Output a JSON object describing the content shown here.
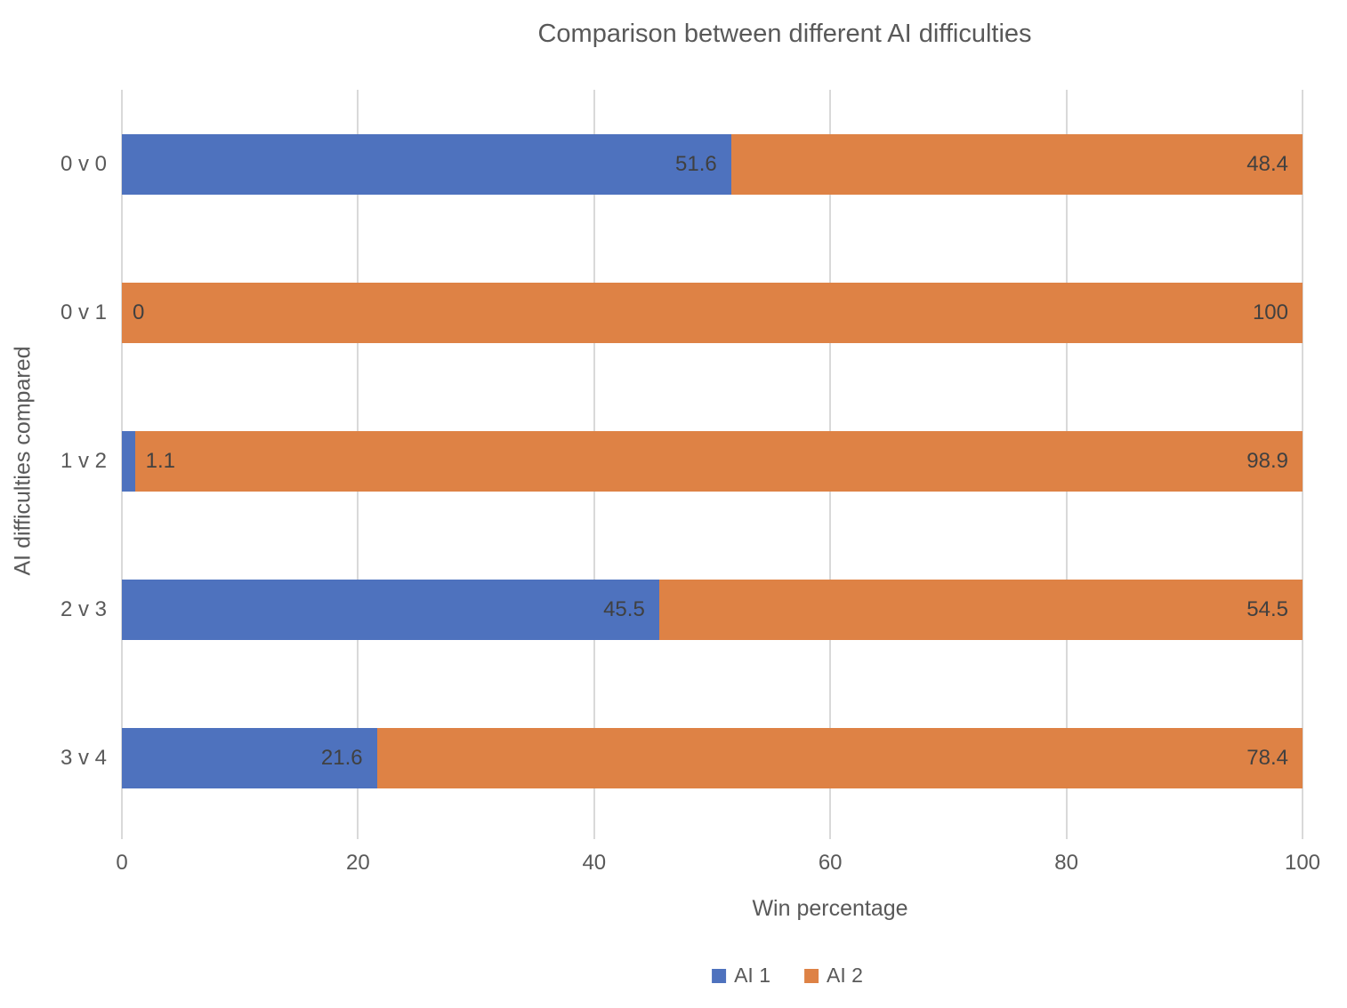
{
  "chart_data": {
    "type": "bar",
    "orientation": "horizontal",
    "stacked": true,
    "title": "Comparison between different AI difficulties",
    "xlabel": "Win percentage",
    "ylabel": "AI difficulties compared",
    "categories": [
      "0 v 0",
      "0 v 1",
      "1 v 2",
      "2 v 3",
      "3 v 4"
    ],
    "series": [
      {
        "name": "AI 1",
        "color": "#4e72be",
        "values": [
          51.6,
          0,
          1.1,
          45.5,
          21.6
        ]
      },
      {
        "name": "AI 2",
        "color": "#de8245",
        "values": [
          48.4,
          100,
          98.9,
          54.5,
          78.4
        ]
      }
    ],
    "x_ticks": [
      0,
      20,
      40,
      60,
      80,
      100
    ],
    "xlim": [
      0,
      100
    ],
    "gridlines": true,
    "legend_position": "bottom",
    "colors": {
      "grid": "#d9d9d9",
      "axis_text": "#595959",
      "data_label_text": "#404040",
      "title_text": "#595959"
    }
  }
}
